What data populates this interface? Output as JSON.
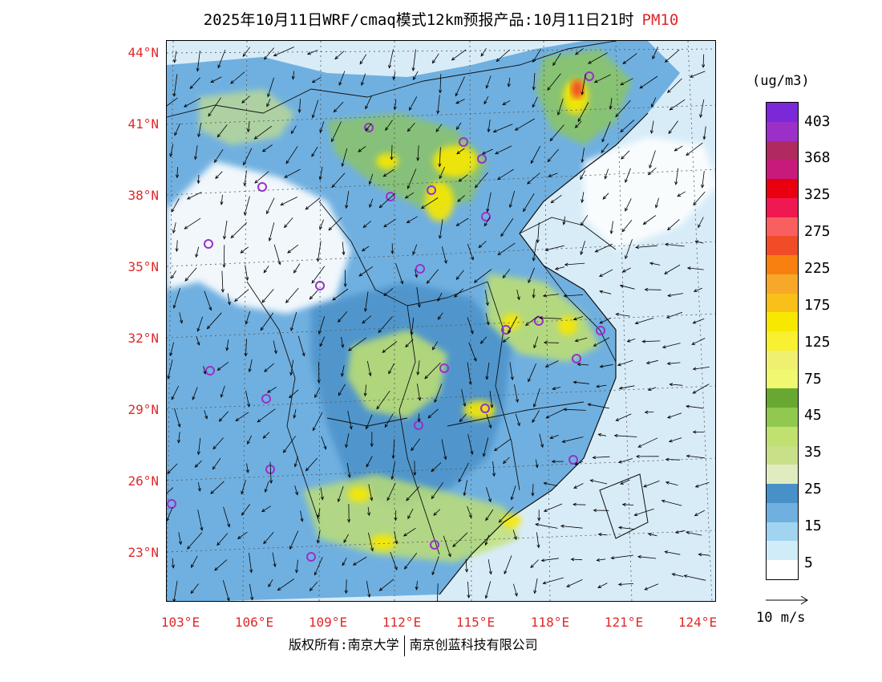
{
  "title": {
    "main": "2025年10月11日WRF/cmaq模式12km预报产品:10月11日21时",
    "pollutant": "PM10"
  },
  "axes": {
    "lat_labels": [
      "44°N",
      "41°N",
      "38°N",
      "35°N",
      "32°N",
      "29°N",
      "26°N",
      "23°N"
    ],
    "lon_labels": [
      "103°E",
      "106°E",
      "109°E",
      "112°E",
      "115°E",
      "118°E",
      "121°E",
      "124°E"
    ]
  },
  "colorbar": {
    "unit": "(ug/m3)",
    "labels": [
      "403",
      "368",
      "325",
      "275",
      "225",
      "175",
      "125",
      "75",
      "45",
      "35",
      "25",
      "15",
      "5"
    ],
    "colors": [
      "#7a28d8",
      "#9a30c8",
      "#b02a60",
      "#c81a7a",
      "#e80010",
      "#f01850",
      "#f86060",
      "#f04c28",
      "#f88010",
      "#f8a828",
      "#f8c018",
      "#f8e800",
      "#f8f030",
      "#f0f070",
      "#f0f870",
      "#68a830",
      "#90c850",
      "#c0e070",
      "#c8e088",
      "#e0ecc0",
      "#4890c8",
      "#70b0e0",
      "#a0d4f0",
      "#d0ecf8",
      "#ffffff"
    ],
    "color_semantics": "PM10 concentration scale, high at top to low at bottom"
  },
  "wind_legend": {
    "label": "10 m/s"
  },
  "footer": {
    "left": "版权所有:南京大学",
    "right": "南京创蓝科技有限公司"
  },
  "map": {
    "region": "Eastern China",
    "lat_range": [
      21,
      44.5
    ],
    "lon_range": [
      102.8,
      124
    ],
    "land_color": "#4890c8",
    "sea_color": "#d8ecf8",
    "marker_color": "#9a30c8"
  }
}
